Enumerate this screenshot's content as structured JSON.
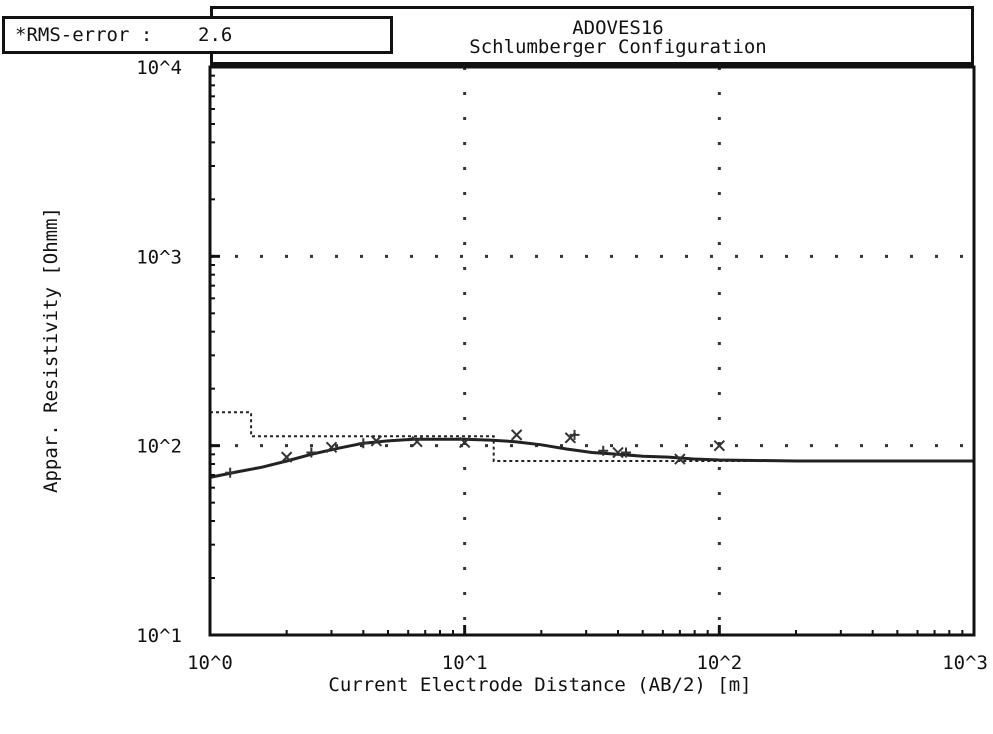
{
  "header": {
    "rms_label": "*RMS-error :",
    "rms_value": "2.6",
    "title": "ADOVES16",
    "subtitle": "Schlumberger Configuration"
  },
  "chart_data": {
    "type": "line",
    "xscale": "log",
    "yscale": "log",
    "xlim": [
      1,
      1000
    ],
    "ylim": [
      10,
      10000
    ],
    "xlabel": "Current Electrode Distance (AB/2) [m]",
    "ylabel": "Appar. Resistivity [Ohmm]",
    "x_ticks": [
      {
        "value": 1,
        "label": "10^0"
      },
      {
        "value": 10,
        "label": "10^1"
      },
      {
        "value": 100,
        "label": "10^2"
      },
      {
        "value": 1000,
        "label": "10^3"
      }
    ],
    "y_ticks": [
      {
        "value": 10,
        "label": "10^1"
      },
      {
        "value": 100,
        "label": "10^2"
      },
      {
        "value": 1000,
        "label": "10^3"
      },
      {
        "value": 10000,
        "label": "10^4"
      }
    ],
    "grid": true,
    "series": [
      {
        "role": "calculated-curve",
        "style": "solid",
        "color": "#222222",
        "x": [
          1.0,
          1.3,
          1.6,
          2.0,
          2.5,
          3.2,
          4.0,
          5.0,
          6.3,
          8.0,
          10.0,
          12.6,
          15.8,
          20.0,
          25.1,
          31.6,
          39.8,
          50.1,
          63.1,
          79.4,
          100.0,
          200.0,
          500.0,
          1000.0
        ],
        "y": [
          68,
          73,
          77,
          83,
          90,
          97,
          103,
          106,
          108,
          108,
          108,
          107,
          105,
          101,
          96,
          92,
          90,
          88,
          87,
          85,
          84,
          83,
          83,
          83
        ]
      },
      {
        "role": "layer-model",
        "style": "dotted",
        "color": "#222222",
        "x": [
          1.0,
          1.45,
          1.45,
          13.0,
          13.0,
          1000.0
        ],
        "y": [
          150,
          150,
          112,
          112,
          83,
          83
        ]
      },
      {
        "role": "measured-data",
        "style": "markers",
        "color": "#333333",
        "marker": "x",
        "x": [
          2.0,
          3.0,
          4.5,
          6.5,
          10.0,
          16.0,
          26.0,
          40.0,
          70.0,
          100.0
        ],
        "y": [
          87,
          98,
          106,
          105,
          104,
          114,
          110,
          92,
          85,
          100
        ]
      },
      {
        "role": "measured-data-plus",
        "style": "markers",
        "color": "#333333",
        "marker": "+",
        "x": [
          1.2,
          2.5,
          4.0,
          27.0,
          35.0,
          43.0
        ],
        "y": [
          72,
          92,
          103,
          114,
          94,
          92
        ]
      }
    ]
  }
}
